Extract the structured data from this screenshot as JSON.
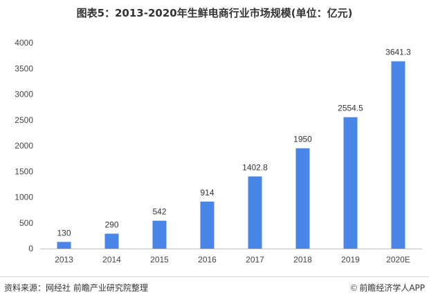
{
  "title": "图表5：2013-2020年生鲜电商行业市场规模(单位：亿元)",
  "source_text": "资料来源：网经社 前瞻产业研究院整理",
  "brand": {
    "icon": "copyright-icon",
    "glyph": "©",
    "text": "前瞻经济学人APP"
  },
  "colors": {
    "bar": "#4a86e8",
    "axis": "#bfbfbf"
  },
  "chart_data": {
    "type": "bar",
    "title": "图表5：2013-2020年生鲜电商行业市场规模(单位：亿元)",
    "categories": [
      "2013",
      "2014",
      "2015",
      "2016",
      "2017",
      "2018",
      "2019",
      "2020E"
    ],
    "values": [
      130,
      290,
      542,
      914,
      1402.8,
      1950,
      2554.5,
      3641.3
    ],
    "value_labels": [
      "130",
      "290",
      "542",
      "914",
      "1402.8",
      "1950",
      "2554.5",
      "3641.3"
    ],
    "yticks": [
      0,
      500,
      1000,
      1500,
      2000,
      2500,
      3000,
      3500,
      4000
    ],
    "ylim": [
      0,
      4000
    ],
    "xlabel": "",
    "ylabel": "",
    "grid": false,
    "legend": "none"
  }
}
